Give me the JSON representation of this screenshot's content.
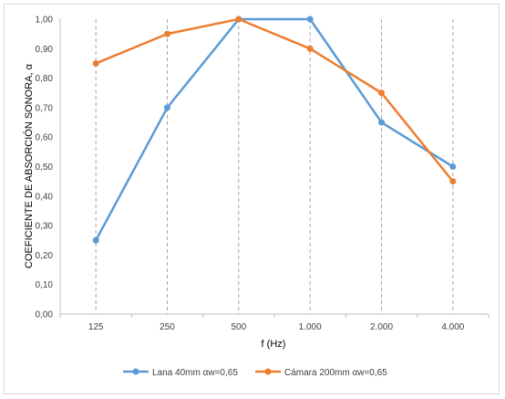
{
  "chart_data": {
    "type": "line",
    "title": "",
    "xlabel": "f (Hz)",
    "ylabel": "COEFICIENTE DE ABSORCIÓN SONORA, α",
    "categories": [
      "125",
      "250",
      "500",
      "1.000",
      "2.000",
      "4.000"
    ],
    "y_ticks": [
      "0,00",
      "0,10",
      "0,20",
      "0,30",
      "0,40",
      "0,50",
      "0,60",
      "0,70",
      "0,80",
      "0,90",
      "1,00"
    ],
    "ylim": [
      0,
      1
    ],
    "grid": "vertical dashed at categories",
    "legend_position": "bottom",
    "series": [
      {
        "name": "Lana 40mm αw=0,65",
        "color": "#5b9bd5",
        "values": [
          0.25,
          0.7,
          1.0,
          1.0,
          0.65,
          0.5
        ]
      },
      {
        "name": "Cámara 200mm αw=0,65",
        "color": "#ed7d31",
        "values": [
          0.85,
          0.95,
          1.0,
          0.9,
          0.75,
          0.45
        ]
      }
    ]
  }
}
